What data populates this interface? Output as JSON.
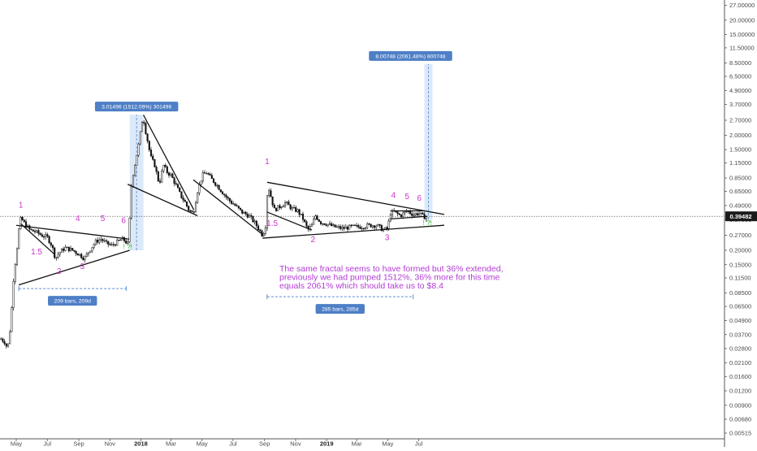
{
  "chart_data": {
    "type": "line",
    "y_scale": "log",
    "ylim": [
      0.00515,
      29.0
    ],
    "y_ticks": [
      "27.00000",
      "20.00000",
      "15.00000",
      "11.50000",
      "8.50000",
      "6.50000",
      "4.90000",
      "3.70000",
      "2.70000",
      "2.00000",
      "1.50000",
      "1.15000",
      "0.85000",
      "0.65000",
      "0.49000",
      "0.37000",
      "0.27000",
      "0.20000",
      "0.15000",
      "0.11500",
      "0.08500",
      "0.06500",
      "0.04900",
      "0.03700",
      "0.02800",
      "0.02100",
      "0.01600",
      "0.01200",
      "0.00900",
      "0.00680",
      "0.00515"
    ],
    "x_ticks": [
      {
        "label": "May",
        "bold": false
      },
      {
        "label": "Jul",
        "bold": false
      },
      {
        "label": "Sep",
        "bold": false
      },
      {
        "label": "Nov",
        "bold": false
      },
      {
        "label": "2018",
        "bold": true
      },
      {
        "label": "Mar",
        "bold": false
      },
      {
        "label": "May",
        "bold": false
      },
      {
        "label": "Jul",
        "bold": false
      },
      {
        "label": "Sep",
        "bold": false
      },
      {
        "label": "Nov",
        "bold": false
      },
      {
        "label": "2019",
        "bold": true
      },
      {
        "label": "Mar",
        "bold": false
      },
      {
        "label": "May",
        "bold": false
      },
      {
        "label": "Jul",
        "bold": false
      }
    ],
    "price_line": 0.39482,
    "price_label": "0.39482",
    "series_points": [
      [
        "2017-04-01",
        0.034
      ],
      [
        "2017-04-08",
        0.032
      ],
      [
        "2017-04-14",
        0.028
      ],
      [
        "2017-04-20",
        0.045
      ],
      [
        "2017-04-26",
        0.12
      ],
      [
        "2017-05-02",
        0.2
      ],
      [
        "2017-05-06",
        0.3
      ],
      [
        "2017-05-10",
        0.38
      ],
      [
        "2017-05-14",
        0.36
      ],
      [
        "2017-05-20",
        0.33
      ],
      [
        "2017-05-28",
        0.3
      ],
      [
        "2017-06-08",
        0.29
      ],
      [
        "2017-06-20",
        0.27
      ],
      [
        "2017-07-01",
        0.26
      ],
      [
        "2017-07-10",
        0.22
      ],
      [
        "2017-07-17",
        0.17
      ],
      [
        "2017-07-24",
        0.19
      ],
      [
        "2017-08-05",
        0.21
      ],
      [
        "2017-08-20",
        0.2
      ],
      [
        "2017-09-01",
        0.185
      ],
      [
        "2017-09-12",
        0.17
      ],
      [
        "2017-09-22",
        0.2
      ],
      [
        "2017-10-05",
        0.24
      ],
      [
        "2017-10-15",
        0.25
      ],
      [
        "2017-10-25",
        0.23
      ],
      [
        "2017-11-05",
        0.22
      ],
      [
        "2017-11-15",
        0.235
      ],
      [
        "2017-11-25",
        0.25
      ],
      [
        "2017-12-02",
        0.24
      ],
      [
        "2017-12-06",
        0.22
      ],
      [
        "2017-12-09",
        0.3
      ],
      [
        "2017-12-11",
        0.5
      ],
      [
        "2017-12-14",
        0.8
      ],
      [
        "2017-12-20",
        1.1
      ],
      [
        "2017-12-28",
        1.7
      ],
      [
        "2018-01-02",
        2.4
      ],
      [
        "2018-01-05",
        3.0
      ],
      [
        "2018-01-09",
        2.3
      ],
      [
        "2018-01-14",
        1.8
      ],
      [
        "2018-01-20",
        1.3
      ],
      [
        "2018-01-28",
        1.1
      ],
      [
        "2018-02-06",
        0.75
      ],
      [
        "2018-02-14",
        1.1
      ],
      [
        "2018-02-22",
        0.95
      ],
      [
        "2018-03-01",
        0.9
      ],
      [
        "2018-03-10",
        0.75
      ],
      [
        "2018-03-20",
        0.6
      ],
      [
        "2018-03-28",
        0.53
      ],
      [
        "2018-04-06",
        0.44
      ],
      [
        "2018-04-14",
        0.42
      ],
      [
        "2018-04-22",
        0.65
      ],
      [
        "2018-05-02",
        0.9
      ],
      [
        "2018-05-10",
        0.95
      ],
      [
        "2018-05-18",
        0.85
      ],
      [
        "2018-05-30",
        0.74
      ],
      [
        "2018-06-10",
        0.64
      ],
      [
        "2018-06-22",
        0.55
      ],
      [
        "2018-07-05",
        0.49
      ],
      [
        "2018-07-18",
        0.43
      ],
      [
        "2018-08-01",
        0.4
      ],
      [
        "2018-08-12",
        0.35
      ],
      [
        "2018-08-22",
        0.3
      ],
      [
        "2018-08-28",
        0.27
      ],
      [
        "2018-09-04",
        0.34
      ],
      [
        "2018-09-07",
        0.75
      ],
      [
        "2018-09-12",
        0.62
      ],
      [
        "2018-09-20",
        0.45
      ],
      [
        "2018-10-01",
        0.48
      ],
      [
        "2018-10-12",
        0.52
      ],
      [
        "2018-10-25",
        0.46
      ],
      [
        "2018-11-05",
        0.44
      ],
      [
        "2018-11-15",
        0.38
      ],
      [
        "2018-11-25",
        0.3
      ],
      [
        "2018-12-03",
        0.33
      ],
      [
        "2018-12-10",
        0.4
      ],
      [
        "2018-12-20",
        0.35
      ],
      [
        "2019-01-01",
        0.34
      ],
      [
        "2019-01-15",
        0.32
      ],
      [
        "2019-02-01",
        0.31
      ],
      [
        "2019-02-20",
        0.32
      ],
      [
        "2019-03-10",
        0.32
      ],
      [
        "2019-03-25",
        0.33
      ],
      [
        "2019-04-10",
        0.33
      ],
      [
        "2019-04-22",
        0.3
      ],
      [
        "2019-05-01",
        0.31
      ],
      [
        "2019-05-06",
        0.42
      ],
      [
        "2019-05-14",
        0.43
      ],
      [
        "2019-05-26",
        0.4
      ],
      [
        "2019-06-08",
        0.44
      ],
      [
        "2019-06-20",
        0.41
      ],
      [
        "2019-07-02",
        0.42
      ],
      [
        "2019-07-10",
        0.39
      ],
      [
        "2019-07-18",
        0.395
      ]
    ],
    "annotations": {
      "measure_1": "3.01496 (1512.09%) 301496",
      "measure_2": "8.00748 (2061.48%) 800748",
      "range_1": "209 bars, 209d",
      "range_2": "285 bars, 285d",
      "note_lines": [
        "The same fractal seems to have formed but 36% extended,",
        "previously we had pumped 1512%, 36% more for this time",
        "equals 2061% which should take us to $8.4"
      ],
      "waves_1": [
        "1",
        "1.5",
        "2",
        "3",
        "4",
        "5",
        "6"
      ],
      "waves_2": [
        "1",
        "1.5",
        "2",
        "3",
        "4",
        "5",
        "6"
      ],
      "signal_mark": "! ?!"
    },
    "colors": {
      "candle": "#111111",
      "wave_label": "#c936c9",
      "note": "#b43bd6",
      "measure_fill": "#cfe2f7",
      "measure_tag": "#4f7fc6",
      "price_tag": "#1a1a1a"
    }
  }
}
